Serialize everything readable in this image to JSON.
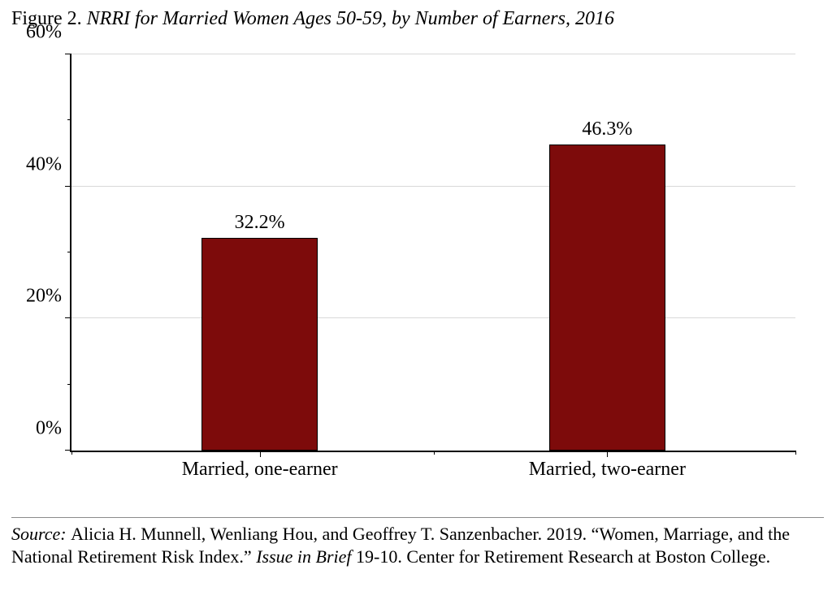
{
  "title": {
    "label": "Figure 2. ",
    "caption": "NRRI for Married Women Ages 50-59, by Number of Earners, 2016"
  },
  "chart": {
    "type": "bar",
    "background_color": "#ffffff",
    "grid_color": "#d9d9d9",
    "ymax": 60,
    "ytick_step": 20,
    "yticks": [
      {
        "v": 0,
        "label": "0%"
      },
      {
        "v": 20,
        "label": "20%"
      },
      {
        "v": 40,
        "label": "40%"
      },
      {
        "v": 60,
        "label": "60%"
      }
    ],
    "yminor": [
      10,
      30,
      50
    ],
    "bar_color": "#7d0b0b",
    "bar_width_pct": 16,
    "bars": [
      {
        "label": "Married, one-earner",
        "value": 32.2,
        "value_label": "32.2%",
        "center_pct": 26
      },
      {
        "label": "Married, two-earner",
        "value": 46.3,
        "value_label": "46.3%",
        "center_pct": 74
      }
    ],
    "xminor_pct": [
      50
    ],
    "tick_label_fontsize": 24,
    "barlabel_fontsize": 24
  },
  "source": {
    "prefix": "Source: ",
    "part1": "Alicia H. Munnell, Wenliang Hou, and Geoffrey T. Sanzenbacher. 2019. “Women, Marriage, and the National Retirement Risk Index.” ",
    "ital": "Issue in Brief ",
    "part2": "19-10. Center for Retirement Research at Boston College.",
    "rule_color": "#8a8a8a"
  }
}
